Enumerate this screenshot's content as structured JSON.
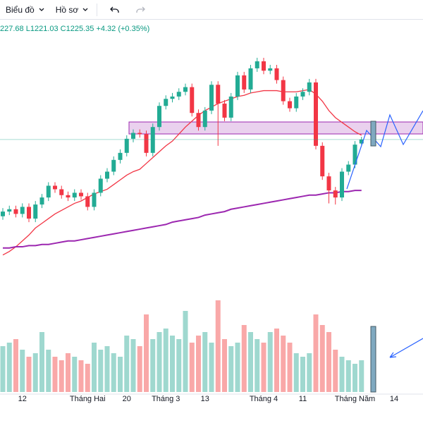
{
  "toolbar": {
    "chart_menu": "Biểu đồ",
    "profile_menu": "Hồ sơ"
  },
  "ohlc_header": [
    "227.68",
    "L1221.03",
    "C1225.35",
    "+4.32 (+0.35%)"
  ],
  "chart_data": {
    "type": "candlestick",
    "categories": [
      null,
      null,
      null,
      "12",
      null,
      null,
      null,
      null,
      null,
      null,
      null,
      null,
      null,
      "Tháng Hai",
      null,
      null,
      null,
      null,
      null,
      "20",
      null,
      null,
      null,
      null,
      null,
      "Tháng 3",
      null,
      null,
      null,
      null,
      null,
      "13",
      null,
      null,
      null,
      null,
      null,
      null,
      null,
      null,
      "Tháng 4",
      null,
      null,
      null,
      null,
      null,
      "11",
      null,
      null,
      null,
      null,
      null,
      null,
      null,
      "Tháng Năm",
      null,
      null,
      null,
      null,
      null,
      "14",
      null
    ],
    "open": [
      1160,
      1164,
      1166,
      1162,
      1168,
      1158,
      1170,
      1176,
      1186,
      1183,
      1178,
      1176,
      1180,
      1177,
      1168,
      1180,
      1192,
      1198,
      1208,
      1214,
      1226,
      1231,
      1230,
      1214,
      1236,
      1254,
      1260,
      1262,
      1266,
      1270,
      1248,
      1236,
      1250,
      1272,
      1256,
      1244,
      1262,
      1280,
      1268,
      1286,
      1292,
      1284,
      1286,
      1276,
      1258,
      1252,
      1262,
      1266,
      1274,
      1220,
      1194,
      1182,
      1176,
      1198,
      1204,
      1222,
      null,
      null,
      null,
      null,
      null,
      null
    ],
    "high": [
      1167,
      1169,
      1169,
      1171,
      1171,
      1173,
      1179,
      1189,
      1189,
      1186,
      1181,
      1183,
      1183,
      1180,
      1183,
      1195,
      1201,
      1211,
      1217,
      1229,
      1234,
      1234,
      1233,
      1239,
      1257,
      1263,
      1265,
      1269,
      1273,
      1273,
      1251,
      1253,
      1275,
      1275,
      1259,
      1265,
      1283,
      1283,
      1289,
      1295,
      1295,
      1289,
      1289,
      1279,
      1261,
      1265,
      1269,
      1277,
      1277,
      1223,
      1197,
      1185,
      1201,
      1207,
      1224,
      1227.68,
      null,
      null,
      null,
      null,
      null,
      null
    ],
    "low": [
      1157,
      1161,
      1159,
      1159,
      1155,
      1155,
      1167,
      1173,
      1180,
      1175,
      1173,
      1173,
      1174,
      1165,
      1165,
      1177,
      1189,
      1195,
      1205,
      1211,
      1223,
      1227,
      1211,
      1211,
      1233,
      1251,
      1257,
      1259,
      1263,
      1245,
      1233,
      1233,
      1247,
      1220,
      1241,
      1241,
      1259,
      1265,
      1265,
      1283,
      1281,
      1281,
      1273,
      1255,
      1249,
      1249,
      1259,
      1263,
      1217,
      1191,
      1171,
      1170,
      1173,
      1195,
      1201,
      1221.03,
      null,
      null,
      null,
      null,
      null,
      null
    ],
    "close": [
      1164,
      1166,
      1162,
      1168,
      1158,
      1170,
      1176,
      1186,
      1183,
      1178,
      1176,
      1180,
      1177,
      1168,
      1180,
      1192,
      1198,
      1208,
      1214,
      1226,
      1231,
      1230,
      1214,
      1236,
      1254,
      1260,
      1262,
      1266,
      1270,
      1248,
      1236,
      1250,
      1272,
      1256,
      1244,
      1262,
      1280,
      1268,
      1286,
      1292,
      1284,
      1286,
      1276,
      1258,
      1252,
      1262,
      1266,
      1274,
      1220,
      1194,
      1182,
      1176,
      1198,
      1204,
      1221.03,
      1225.35,
      null,
      null,
      null,
      null,
      null,
      null
    ],
    "volume": [
      65,
      70,
      75,
      60,
      50,
      55,
      85,
      60,
      50,
      45,
      55,
      50,
      45,
      40,
      70,
      60,
      65,
      55,
      50,
      80,
      75,
      65,
      110,
      75,
      85,
      90,
      80,
      75,
      115,
      70,
      80,
      85,
      70,
      130,
      75,
      65,
      70,
      95,
      85,
      75,
      70,
      85,
      90,
      80,
      70,
      55,
      50,
      55,
      110,
      95,
      85,
      60,
      50,
      45,
      40,
      45,
      null,
      null,
      null,
      null,
      null,
      null
    ],
    "series": [
      {
        "name": "MA20",
        "color": "#f23645",
        "values": [
          1127,
          1130,
          1134,
          1139,
          1144,
          1150,
          1154,
          1158,
          1162,
          1165,
          1168,
          1171,
          1173,
          1176,
          1179,
          1181,
          1183,
          1187,
          1191,
          1195,
          1198,
          1200,
          1205,
          1210,
          1215,
          1220,
          1224,
          1230,
          1236,
          1241,
          1246,
          1250,
          1253,
          1256,
          1258,
          1260,
          1262,
          1263,
          1265,
          1266,
          1267,
          1267,
          1267,
          1266,
          1266,
          1266,
          1267,
          1268,
          1264,
          1258,
          1250,
          1244,
          1240,
          1236,
          1232,
          1229,
          null,
          null,
          null,
          null,
          null,
          null
        ]
      },
      {
        "name": "MA200",
        "color": "#9c27b0",
        "values": [
          1133,
          1133,
          1134,
          1134,
          1135,
          1135,
          1136,
          1136,
          1137,
          1138,
          1139,
          1139,
          1140,
          1141,
          1142,
          1143,
          1144,
          1145,
          1146,
          1147,
          1148,
          1149,
          1150,
          1151,
          1152,
          1153,
          1155,
          1156,
          1157,
          1158,
          1159,
          1161,
          1162,
          1163,
          1164,
          1166,
          1167,
          1168,
          1169,
          1170,
          1171,
          1172,
          1173,
          1174,
          1175,
          1176,
          1177,
          1178,
          1178,
          1179,
          1180,
          1180,
          1181,
          1181,
          1182,
          1182,
          null,
          null,
          null,
          null,
          null,
          null
        ]
      }
    ],
    "up_color": "#22ab94",
    "down_color": "#f23645",
    "ylim": [
      1098,
      1328
    ],
    "volume_lim": [
      0,
      140
    ]
  }
}
